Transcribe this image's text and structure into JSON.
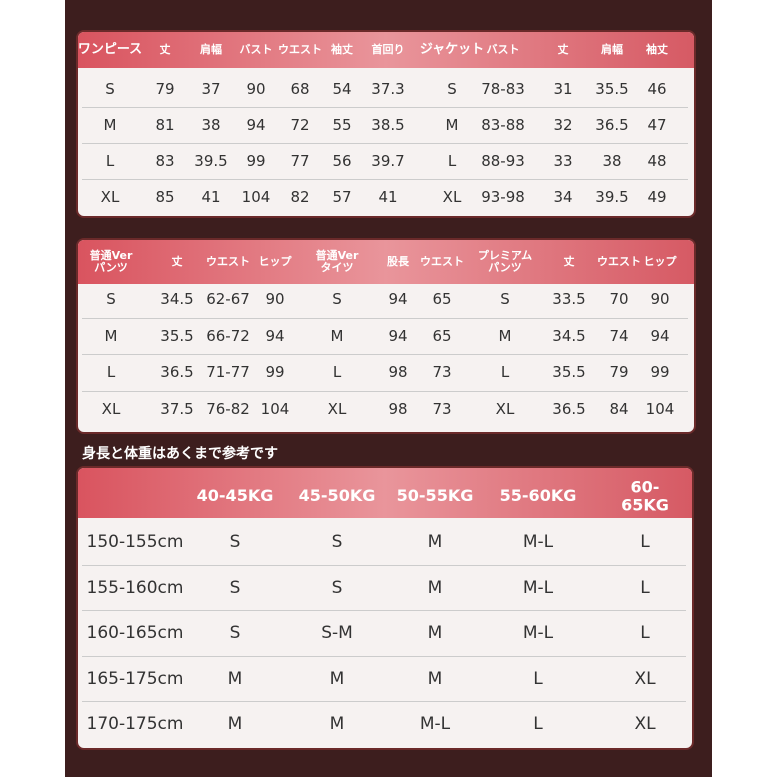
{
  "table1": {
    "header": [
      "ワンピース",
      "丈",
      "肩幅",
      "バスト",
      "ウエスト",
      "袖丈",
      "首回り",
      "ジャケット",
      "バスト",
      "丈",
      "肩幅",
      "袖丈"
    ],
    "rows": [
      [
        "S",
        "79",
        "37",
        "90",
        "68",
        "54",
        "37.3",
        "S",
        "78-83",
        "31",
        "35.5",
        "46"
      ],
      [
        "M",
        "81",
        "38",
        "94",
        "72",
        "55",
        "38.5",
        "M",
        "83-88",
        "32",
        "36.5",
        "47"
      ],
      [
        "L",
        "83",
        "39.5",
        "99",
        "77",
        "56",
        "39.7",
        "L",
        "88-93",
        "33",
        "38",
        "48"
      ],
      [
        "XL",
        "85",
        "41",
        "104",
        "82",
        "57",
        "41",
        "XL",
        "93-98",
        "34",
        "39.5",
        "49"
      ]
    ]
  },
  "table2": {
    "header": [
      "普通Ver\nパンツ",
      "丈",
      "ウエスト",
      "ヒップ",
      "普通Ver\nタイツ",
      "股長",
      "ウエスト",
      "プレミアム\nパンツ",
      "丈",
      "ウエスト",
      "ヒップ"
    ],
    "rows": [
      [
        "S",
        "34.5",
        "62-67",
        "90",
        "S",
        "94",
        "65",
        "S",
        "33.5",
        "70",
        "90"
      ],
      [
        "M",
        "35.5",
        "66-72",
        "94",
        "M",
        "94",
        "65",
        "M",
        "34.5",
        "74",
        "94"
      ],
      [
        "L",
        "36.5",
        "71-77",
        "99",
        "L",
        "98",
        "73",
        "L",
        "35.5",
        "79",
        "99"
      ],
      [
        "XL",
        "37.5",
        "76-82",
        "104",
        "XL",
        "98",
        "73",
        "XL",
        "36.5",
        "84",
        "104"
      ]
    ]
  },
  "note": "身長と体重はあくまで参考です",
  "table3": {
    "header": [
      "40-45KG",
      "45-50KG",
      "50-55KG",
      "55-60KG",
      "60-65KG"
    ],
    "rows": [
      [
        "150-155cm",
        "S",
        "S",
        "M",
        "M-L",
        "L"
      ],
      [
        "155-160cm",
        "S",
        "S",
        "M",
        "M-L",
        "L"
      ],
      [
        "160-165cm",
        "S",
        "S-M",
        "M",
        "M-L",
        "L"
      ],
      [
        "165-175cm",
        "M",
        "M",
        "M",
        "L",
        "XL"
      ],
      [
        "170-175cm",
        "M",
        "M",
        "M-L",
        "L",
        "XL"
      ]
    ]
  }
}
